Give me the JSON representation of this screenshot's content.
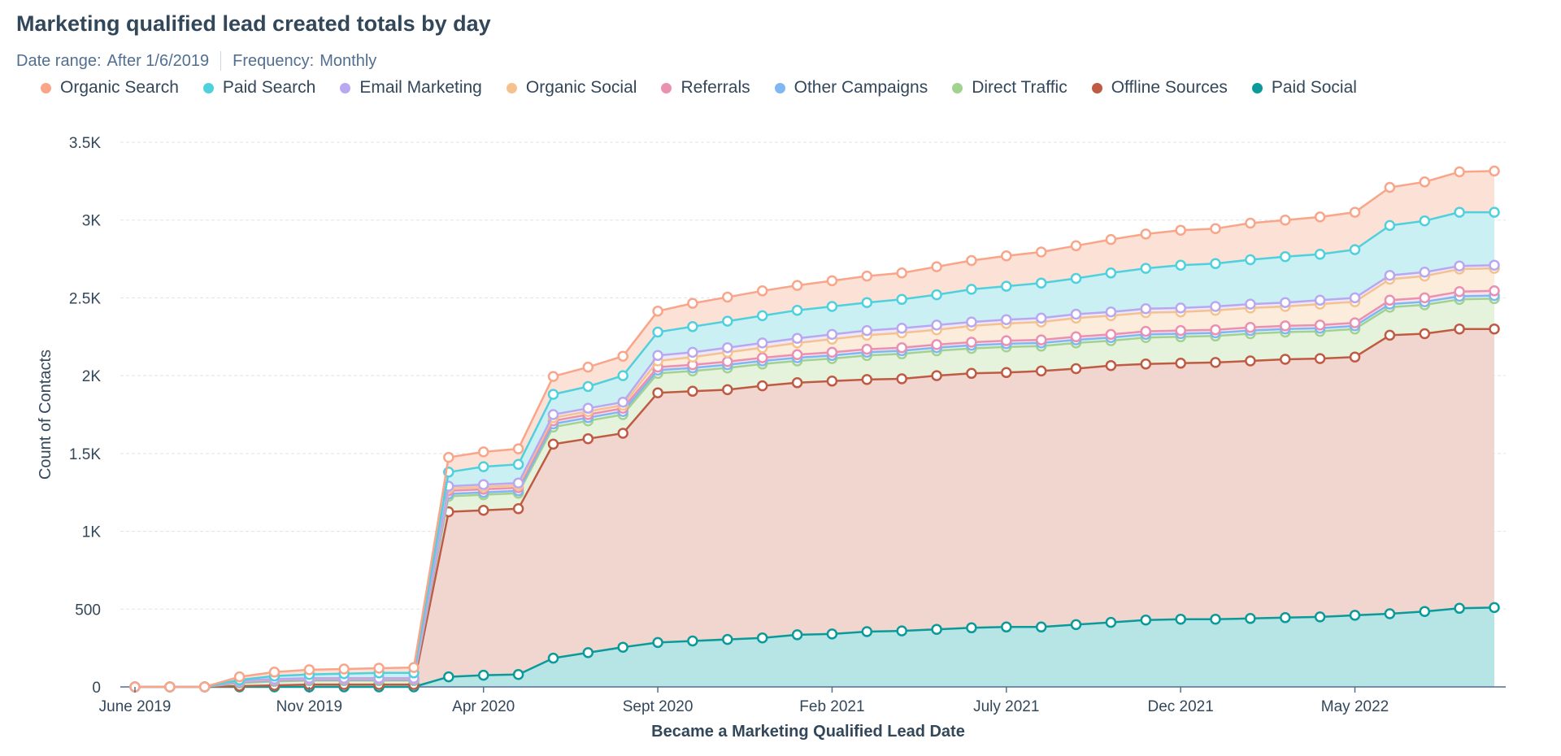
{
  "header": {
    "title": "Marketing qualified lead created totals by day",
    "date_range_label": "Date range:",
    "date_range_value": "After 1/6/2019",
    "frequency_label": "Frequency:",
    "frequency_value": "Monthly"
  },
  "chart_data": {
    "type": "area",
    "stacked": true,
    "title": "Marketing qualified lead created totals by day",
    "xlabel": "Became a Marketing Qualified Lead Date",
    "ylabel": "Count of Contacts",
    "ylim": [
      0,
      3500
    ],
    "y_ticks": [
      0,
      500,
      1000,
      1500,
      2000,
      2500,
      3000,
      3500
    ],
    "y_tick_labels": [
      "0",
      "500",
      "1K",
      "1.5K",
      "2K",
      "2.5K",
      "3K",
      "3.5K"
    ],
    "x_tick_labels": [
      {
        "label": "June 2019",
        "index": 0
      },
      {
        "label": "Nov 2019",
        "index": 5
      },
      {
        "label": "Apr 2020",
        "index": 10
      },
      {
        "label": "Sept 2020",
        "index": 15
      },
      {
        "label": "Feb 2021",
        "index": 20
      },
      {
        "label": "July 2021",
        "index": 25
      },
      {
        "label": "Dec 2021",
        "index": 30
      },
      {
        "label": "May 2022",
        "index": 35
      }
    ],
    "x": [
      "June 2019",
      "July 2019",
      "Aug 2019",
      "Sept 2019",
      "Oct 2019",
      "Nov 2019",
      "Dec 2019",
      "Jan 2020",
      "Feb 2020",
      "Mar 2020",
      "Apr 2020",
      "May 2020",
      "June 2020",
      "July 2020",
      "Aug 2020",
      "Sept 2020",
      "Oct 2020",
      "Nov 2020",
      "Dec 2020",
      "Jan 2021",
      "Feb 2021",
      "Mar 2021",
      "Apr 2021",
      "May 2021",
      "June 2021",
      "July 2021",
      "Aug 2021",
      "Sept 2021",
      "Oct 2021",
      "Nov 2021",
      "Dec 2021",
      "Jan 2022",
      "Feb 2022",
      "Mar 2022",
      "Apr 2022",
      "May 2022",
      "June 2022",
      "July 2022",
      "Aug 2022",
      "Sept 2022"
    ],
    "grid": true,
    "legend_position": "top",
    "series": [
      {
        "name": "Paid Social",
        "color": "#0b9a9a",
        "fill": "#b3e3e3",
        "cumulative": [
          0,
          0,
          0,
          0,
          0,
          0,
          0,
          0,
          0,
          65,
          75,
          80,
          185,
          220,
          255,
          285,
          295,
          305,
          315,
          335,
          340,
          355,
          360,
          370,
          380,
          385,
          385,
          400,
          415,
          430,
          435,
          435,
          440,
          445,
          450,
          460,
          470,
          485,
          505,
          510
        ]
      },
      {
        "name": "Offline Sources",
        "color": "#bf5b43",
        "fill": "#f0d4ce",
        "cumulative": [
          0,
          0,
          0,
          5,
          10,
          15,
          15,
          15,
          15,
          1125,
          1135,
          1145,
          1560,
          1595,
          1630,
          1890,
          1900,
          1910,
          1935,
          1955,
          1965,
          1975,
          1980,
          2000,
          2015,
          2020,
          2030,
          2045,
          2065,
          2075,
          2080,
          2085,
          2095,
          2105,
          2110,
          2120,
          2260,
          2270,
          2300,
          2300
        ]
      },
      {
        "name": "Direct Traffic",
        "color": "#a2d28f",
        "fill": "#e4f2da",
        "cumulative": [
          0,
          0,
          0,
          25,
          35,
          40,
          40,
          40,
          40,
          1225,
          1235,
          1245,
          1670,
          1710,
          1750,
          2015,
          2030,
          2050,
          2075,
          2095,
          2110,
          2130,
          2140,
          2160,
          2175,
          2185,
          2190,
          2210,
          2225,
          2245,
          2250,
          2255,
          2270,
          2280,
          2285,
          2300,
          2440,
          2455,
          2490,
          2495
        ]
      },
      {
        "name": "Other Campaigns",
        "color": "#7fb7f0",
        "fill": "#dfeefb",
        "cumulative": [
          0,
          0,
          0,
          30,
          40,
          45,
          45,
          45,
          45,
          1240,
          1250,
          1260,
          1690,
          1730,
          1770,
          2035,
          2050,
          2070,
          2095,
          2115,
          2130,
          2150,
          2160,
          2180,
          2195,
          2205,
          2210,
          2230,
          2245,
          2265,
          2270,
          2275,
          2290,
          2300,
          2305,
          2320,
          2460,
          2475,
          2510,
          2515
        ]
      },
      {
        "name": "Referrals",
        "color": "#ea90b1",
        "fill": "#fae0ea",
        "cumulative": [
          0,
          0,
          0,
          35,
          45,
          50,
          50,
          50,
          50,
          1260,
          1270,
          1280,
          1710,
          1750,
          1790,
          2055,
          2070,
          2090,
          2115,
          2135,
          2150,
          2170,
          2180,
          2200,
          2215,
          2225,
          2230,
          2250,
          2265,
          2285,
          2290,
          2295,
          2310,
          2320,
          2325,
          2340,
          2485,
          2500,
          2540,
          2545
        ]
      },
      {
        "name": "Organic Social",
        "color": "#f5c28f",
        "fill": "#fcebd9",
        "cumulative": [
          0,
          0,
          0,
          38,
          48,
          54,
          54,
          54,
          54,
          1275,
          1285,
          1295,
          1730,
          1770,
          1810,
          2095,
          2120,
          2150,
          2180,
          2210,
          2235,
          2260,
          2275,
          2295,
          2320,
          2335,
          2345,
          2370,
          2385,
          2405,
          2410,
          2420,
          2435,
          2445,
          2460,
          2475,
          2620,
          2640,
          2685,
          2690
        ]
      },
      {
        "name": "Email Marketing",
        "color": "#b9a8ef",
        "fill": "#ece6fb",
        "cumulative": [
          0,
          0,
          0,
          40,
          50,
          56,
          56,
          56,
          56,
          1290,
          1300,
          1310,
          1750,
          1790,
          1830,
          2130,
          2150,
          2180,
          2210,
          2240,
          2265,
          2290,
          2305,
          2325,
          2345,
          2360,
          2370,
          2395,
          2410,
          2430,
          2435,
          2445,
          2460,
          2470,
          2485,
          2500,
          2645,
          2665,
          2705,
          2710
        ]
      },
      {
        "name": "Paid Search",
        "color": "#4fd0dd",
        "fill": "#c7eff3",
        "cumulative": [
          0,
          0,
          0,
          45,
          70,
          80,
          85,
          90,
          90,
          1380,
          1415,
          1430,
          1880,
          1930,
          2000,
          2280,
          2315,
          2350,
          2385,
          2420,
          2445,
          2470,
          2490,
          2520,
          2555,
          2575,
          2595,
          2625,
          2660,
          2690,
          2710,
          2720,
          2745,
          2765,
          2780,
          2810,
          2965,
          2995,
          3050,
          3050
        ]
      },
      {
        "name": "Organic Search",
        "color": "#f8a58a",
        "fill": "#fcdfd4",
        "cumulative": [
          0,
          0,
          0,
          65,
          95,
          110,
          115,
          120,
          125,
          1475,
          1510,
          1530,
          1995,
          2055,
          2125,
          2415,
          2465,
          2505,
          2545,
          2580,
          2610,
          2640,
          2660,
          2700,
          2740,
          2770,
          2795,
          2835,
          2875,
          2910,
          2935,
          2945,
          2980,
          3000,
          3020,
          3050,
          3210,
          3245,
          3310,
          3315
        ]
      }
    ]
  },
  "legend": [
    {
      "name": "Organic Search",
      "color": "#f8a58a"
    },
    {
      "name": "Paid Search",
      "color": "#4fd0dd"
    },
    {
      "name": "Email Marketing",
      "color": "#b9a8ef"
    },
    {
      "name": "Organic Social",
      "color": "#f5c28f"
    },
    {
      "name": "Referrals",
      "color": "#ea90b1"
    },
    {
      "name": "Other Campaigns",
      "color": "#7fb7f0"
    },
    {
      "name": "Direct Traffic",
      "color": "#a2d28f"
    },
    {
      "name": "Offline Sources",
      "color": "#bf5b43"
    },
    {
      "name": "Paid Social",
      "color": "#0b9a9a"
    }
  ]
}
